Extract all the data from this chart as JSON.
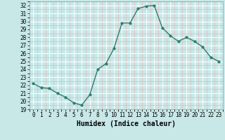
{
  "x": [
    0,
    1,
    2,
    3,
    4,
    5,
    6,
    7,
    8,
    9,
    10,
    11,
    12,
    13,
    14,
    15,
    16,
    17,
    18,
    19,
    20,
    21,
    22,
    23
  ],
  "y": [
    22.2,
    21.7,
    21.6,
    21.0,
    20.5,
    19.8,
    19.5,
    20.8,
    24.0,
    24.7,
    26.6,
    29.8,
    29.8,
    31.6,
    31.9,
    32.0,
    29.2,
    28.2,
    27.5,
    28.0,
    27.5,
    26.8,
    25.5,
    25.0
  ],
  "line_color": "#2e7d6e",
  "bg_color": "#c8e8e8",
  "grid_major_color": "#ffffff",
  "grid_minor_color": "#e8b8b8",
  "xlabel": "Humidex (Indice chaleur)",
  "xlim": [
    -0.5,
    23.5
  ],
  "ylim": [
    19,
    32.5
  ],
  "yticks": [
    19,
    20,
    21,
    22,
    23,
    24,
    25,
    26,
    27,
    28,
    29,
    30,
    31,
    32
  ],
  "xticks": [
    0,
    1,
    2,
    3,
    4,
    5,
    6,
    7,
    8,
    9,
    10,
    11,
    12,
    13,
    14,
    15,
    16,
    17,
    18,
    19,
    20,
    21,
    22,
    23
  ],
  "marker_size": 2.0,
  "line_width": 1.0,
  "xlabel_fontsize": 7,
  "tick_fontsize": 5.5
}
